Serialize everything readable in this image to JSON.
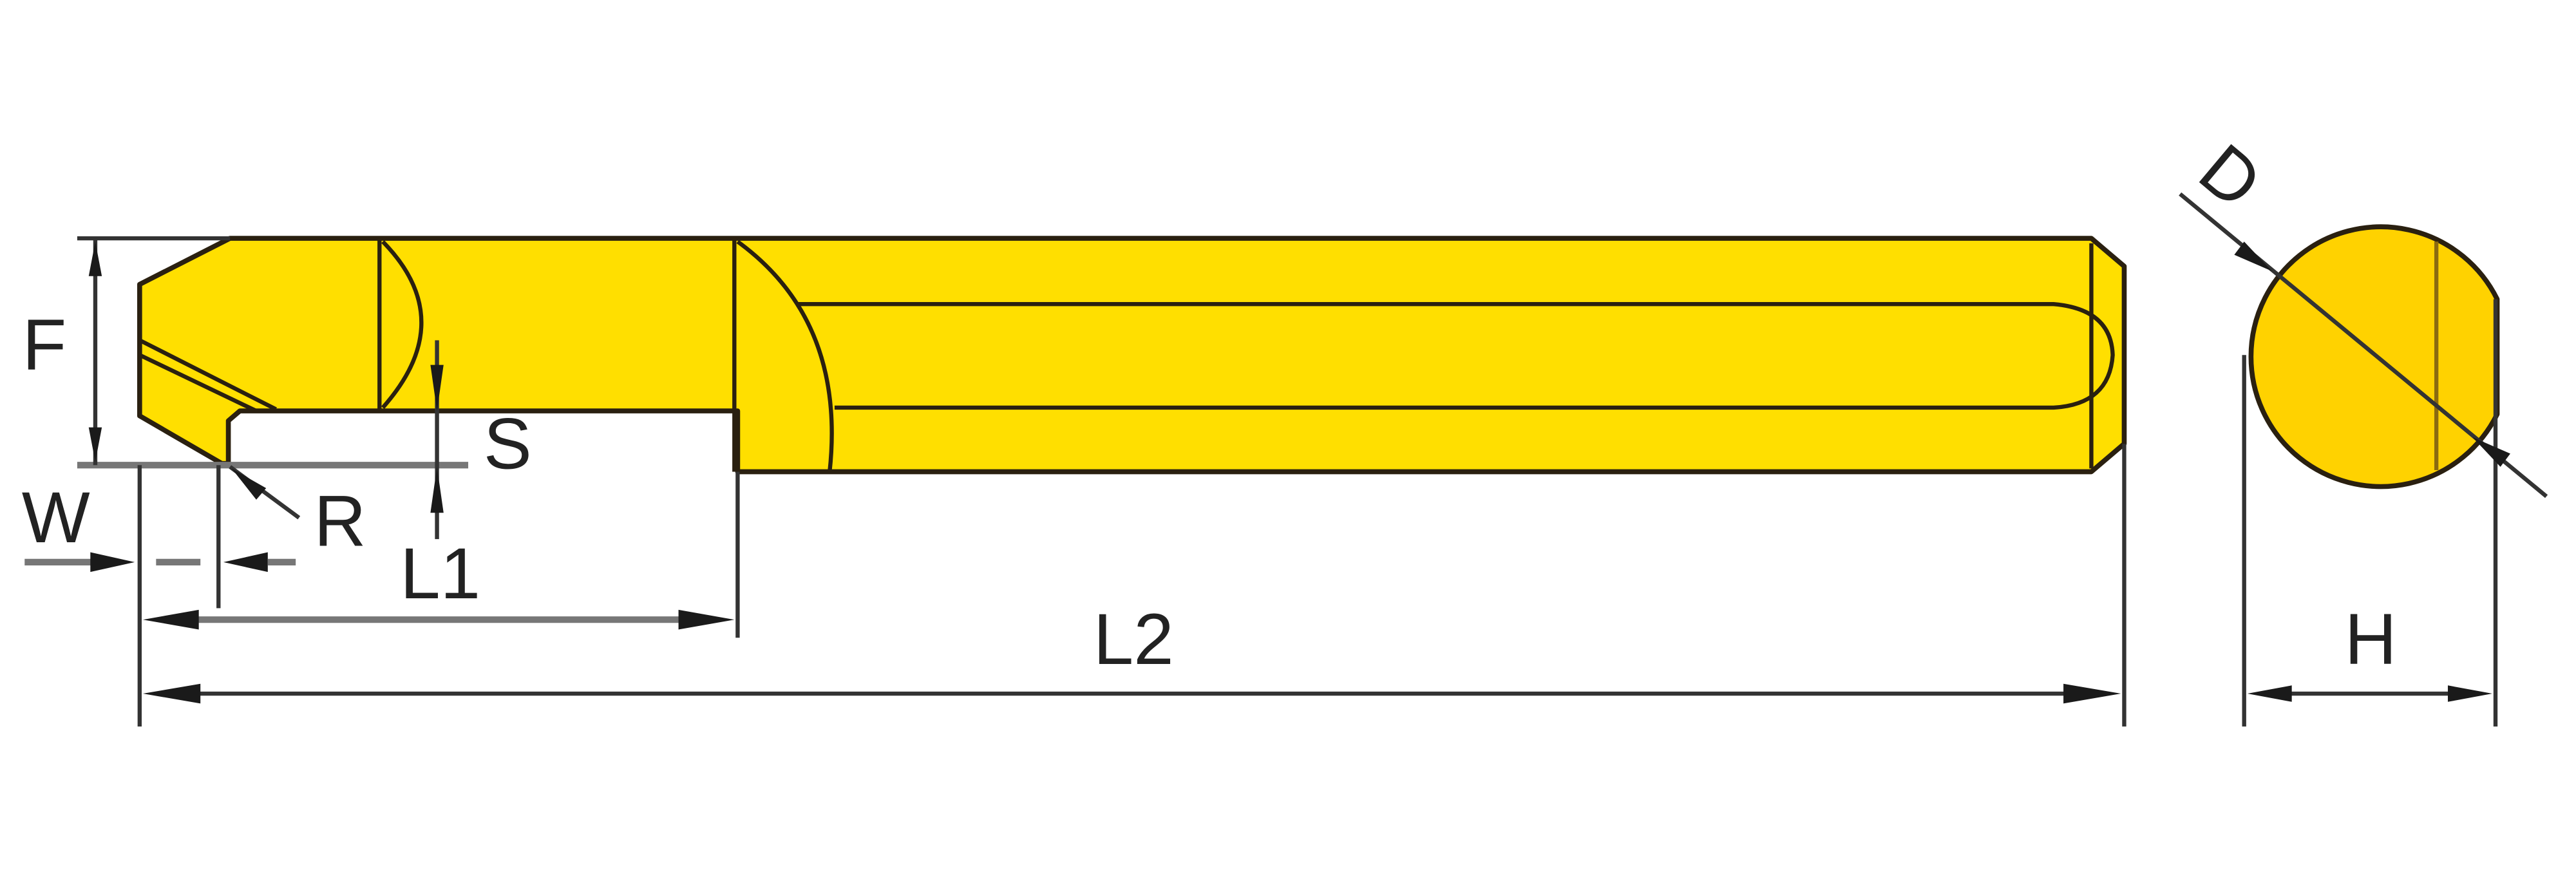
{
  "labels": {
    "F": "F",
    "S": "S",
    "R": "R",
    "W": "W",
    "L1": "L1",
    "L2": "L2",
    "D": "D",
    "H": "H"
  },
  "colors": {
    "tool_body": "#ffdf00",
    "side_view_body": "#ffd200",
    "outline": "#2a2010"
  }
}
